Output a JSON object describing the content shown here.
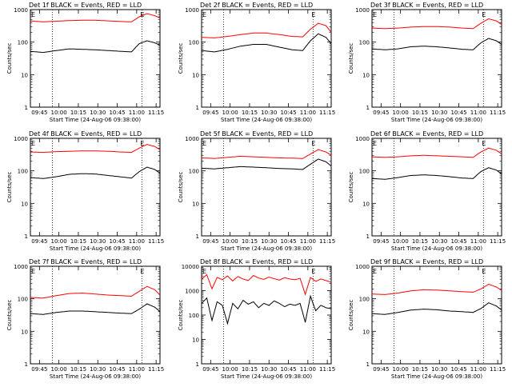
{
  "figure": {
    "background": "#ffffff",
    "event_color": "#000000",
    "lld_color": "#ff0000",
    "x_axis_label": "Start Time (24-Aug-06 09:38:00)",
    "y_axis_label": "Counts/sec",
    "x_tick_labels": [
      "09:45",
      "10:00",
      "10:15",
      "10:30",
      "10:45",
      "11:00",
      "11:15"
    ],
    "y_tick_labels": [
      "1",
      "10",
      "100",
      "1000"
    ],
    "marker_label": "E"
  },
  "chart_data": [
    {
      "type": "line",
      "title": "Det 1f BLACK = Events, RED = LLD",
      "xlabel": "Start Time (24-Aug-06 09:38:00)",
      "ylabel": "Counts/sec",
      "x_ticks": [
        "09:45",
        "10:00",
        "10:15",
        "10:30",
        "10:45",
        "11:00",
        "11:15"
      ],
      "y_scale": "log",
      "ylim": [
        1,
        1000
      ],
      "xlim_minutes": [
        0,
        100
      ],
      "dotted_markers_minutes": [
        17,
        86
      ],
      "series": [
        {
          "name": "LLD",
          "color": "#ff0000",
          "x_minutes": [
            0,
            10,
            20,
            30,
            40,
            50,
            60,
            70,
            78,
            84,
            90,
            96,
            100
          ],
          "values": [
            450,
            420,
            440,
            460,
            470,
            470,
            450,
            430,
            420,
            600,
            750,
            650,
            550
          ]
        },
        {
          "name": "Events",
          "color": "#000000",
          "x_minutes": [
            0,
            10,
            20,
            30,
            40,
            50,
            60,
            70,
            78,
            84,
            90,
            96,
            100
          ],
          "values": [
            52,
            48,
            55,
            62,
            60,
            58,
            55,
            52,
            50,
            90,
            110,
            95,
            80
          ]
        }
      ]
    },
    {
      "type": "line",
      "title": "Det 2f BLACK = Events, RED = LLD",
      "xlabel": "Start Time (24-Aug-06 09:38:00)",
      "ylabel": "Counts/sec",
      "x_ticks": [
        "09:45",
        "10:00",
        "10:15",
        "10:30",
        "10:45",
        "11:00",
        "11:15"
      ],
      "y_scale": "log",
      "ylim": [
        1,
        1000
      ],
      "xlim_minutes": [
        0,
        100
      ],
      "dotted_markers_minutes": [
        17,
        86
      ],
      "series": [
        {
          "name": "LLD",
          "color": "#ff0000",
          "x_minutes": [
            0,
            10,
            20,
            30,
            40,
            50,
            60,
            70,
            78,
            84,
            90,
            96,
            100
          ],
          "values": [
            140,
            135,
            150,
            170,
            190,
            190,
            170,
            150,
            145,
            250,
            380,
            320,
            200
          ]
        },
        {
          "name": "Events",
          "color": "#000000",
          "x_minutes": [
            0,
            10,
            20,
            30,
            40,
            50,
            60,
            70,
            78,
            84,
            90,
            96,
            100
          ],
          "values": [
            55,
            50,
            60,
            75,
            85,
            85,
            70,
            58,
            55,
            110,
            180,
            140,
            90
          ]
        }
      ]
    },
    {
      "type": "line",
      "title": "Det 3f BLACK = Events, RED = LLD",
      "xlabel": "Start Time (24-Aug-06 09:38:00)",
      "ylabel": "Counts/sec",
      "x_ticks": [
        "09:45",
        "10:00",
        "10:15",
        "10:30",
        "10:45",
        "11:00",
        "11:15"
      ],
      "y_scale": "log",
      "ylim": [
        1,
        1000
      ],
      "xlim_minutes": [
        0,
        100
      ],
      "dotted_markers_minutes": [
        17,
        86
      ],
      "series": [
        {
          "name": "LLD",
          "color": "#ff0000",
          "x_minutes": [
            0,
            10,
            20,
            30,
            40,
            50,
            60,
            70,
            78,
            84,
            90,
            96,
            100
          ],
          "values": [
            270,
            260,
            270,
            290,
            300,
            300,
            290,
            270,
            260,
            380,
            520,
            450,
            350
          ]
        },
        {
          "name": "Events",
          "color": "#000000",
          "x_minutes": [
            0,
            10,
            20,
            30,
            40,
            50,
            60,
            70,
            78,
            84,
            90,
            96,
            100
          ],
          "values": [
            62,
            58,
            62,
            72,
            75,
            72,
            66,
            60,
            58,
            95,
            130,
            110,
            85
          ]
        }
      ]
    },
    {
      "type": "line",
      "title": "Det 4f BLACK = Events, RED = LLD",
      "xlabel": "Start Time (24-Aug-06 09:38:00)",
      "ylabel": "Counts/sec",
      "x_ticks": [
        "09:45",
        "10:00",
        "10:15",
        "10:30",
        "10:45",
        "11:00",
        "11:15"
      ],
      "y_scale": "log",
      "ylim": [
        1,
        1000
      ],
      "xlim_minutes": [
        0,
        100
      ],
      "dotted_markers_minutes": [
        17,
        86
      ],
      "series": [
        {
          "name": "LLD",
          "color": "#ff0000",
          "x_minutes": [
            0,
            10,
            20,
            30,
            40,
            50,
            60,
            70,
            78,
            84,
            90,
            96,
            100
          ],
          "values": [
            380,
            370,
            390,
            400,
            410,
            410,
            400,
            380,
            370,
            500,
            650,
            560,
            450
          ]
        },
        {
          "name": "Events",
          "color": "#000000",
          "x_minutes": [
            0,
            10,
            20,
            30,
            40,
            50,
            60,
            70,
            78,
            84,
            90,
            96,
            100
          ],
          "values": [
            62,
            58,
            66,
            78,
            82,
            80,
            72,
            65,
            60,
            95,
            130,
            110,
            85
          ]
        }
      ]
    },
    {
      "type": "line",
      "title": "Det 5f BLACK = Events, RED = LLD",
      "xlabel": "Start Time (24-Aug-06 09:38:00)",
      "ylabel": "Counts/sec",
      "x_ticks": [
        "09:45",
        "10:00",
        "10:15",
        "10:30",
        "10:45",
        "11:00",
        "11:15"
      ],
      "y_scale": "log",
      "ylim": [
        1,
        1000
      ],
      "xlim_minutes": [
        0,
        100
      ],
      "dotted_markers_minutes": [
        17,
        86
      ],
      "series": [
        {
          "name": "LLD",
          "color": "#ff0000",
          "x_minutes": [
            0,
            10,
            20,
            30,
            40,
            50,
            60,
            70,
            78,
            84,
            90,
            96,
            100
          ],
          "values": [
            250,
            240,
            260,
            280,
            270,
            260,
            250,
            245,
            240,
            330,
            450,
            380,
            300
          ]
        },
        {
          "name": "Events",
          "color": "#000000",
          "x_minutes": [
            0,
            10,
            20,
            30,
            40,
            50,
            60,
            70,
            78,
            84,
            90,
            96,
            100
          ],
          "values": [
            120,
            115,
            125,
            135,
            130,
            125,
            118,
            115,
            110,
            160,
            230,
            190,
            140
          ]
        }
      ]
    },
    {
      "type": "line",
      "title": "Det 6f BLACK = Events, RED = LLD",
      "xlabel": "Start Time (24-Aug-06 09:38:00)",
      "ylabel": "Counts/sec",
      "x_ticks": [
        "09:45",
        "10:00",
        "10:15",
        "10:30",
        "10:45",
        "11:00",
        "11:15"
      ],
      "y_scale": "log",
      "ylim": [
        1,
        1000
      ],
      "xlim_minutes": [
        0,
        100
      ],
      "dotted_markers_minutes": [
        17,
        86
      ],
      "series": [
        {
          "name": "LLD",
          "color": "#ff0000",
          "x_minutes": [
            0,
            10,
            20,
            30,
            40,
            50,
            60,
            70,
            78,
            84,
            90,
            96,
            100
          ],
          "values": [
            270,
            260,
            270,
            290,
            300,
            290,
            280,
            270,
            260,
            380,
            500,
            430,
            330
          ]
        },
        {
          "name": "Events",
          "color": "#000000",
          "x_minutes": [
            0,
            10,
            20,
            30,
            40,
            50,
            60,
            70,
            78,
            84,
            90,
            96,
            100
          ],
          "values": [
            58,
            55,
            62,
            72,
            75,
            72,
            66,
            60,
            58,
            95,
            125,
            105,
            80
          ]
        }
      ]
    },
    {
      "type": "line",
      "title": "Det 7f BLACK = Events, RED = LLD",
      "xlabel": "Start Time (24-Aug-06 09:38:00)",
      "ylabel": "Counts/sec",
      "x_ticks": [
        "09:45",
        "10:00",
        "10:15",
        "10:30",
        "10:45",
        "11:00",
        "11:15"
      ],
      "y_scale": "log",
      "ylim": [
        1,
        1000
      ],
      "xlim_minutes": [
        0,
        100
      ],
      "dotted_markers_minutes": [
        17,
        86
      ],
      "series": [
        {
          "name": "LLD",
          "color": "#ff0000",
          "x_minutes": [
            0,
            10,
            20,
            30,
            40,
            50,
            60,
            70,
            78,
            84,
            90,
            96,
            100
          ],
          "values": [
            110,
            105,
            125,
            145,
            150,
            140,
            130,
            125,
            120,
            170,
            240,
            190,
            130
          ]
        },
        {
          "name": "Events",
          "color": "#000000",
          "x_minutes": [
            0,
            10,
            20,
            30,
            40,
            50,
            60,
            70,
            78,
            84,
            90,
            96,
            100
          ],
          "values": [
            35,
            33,
            38,
            42,
            42,
            40,
            38,
            36,
            35,
            48,
            70,
            55,
            40
          ]
        }
      ]
    },
    {
      "type": "line",
      "title": "Det 8f BLACK = Events, RED = LLD",
      "xlabel": "Start Time (24-Aug-06 09:38:00)",
      "ylabel": "Counts/sec",
      "x_ticks": [
        "09:45",
        "10:00",
        "10:15",
        "10:30",
        "10:45",
        "11:00",
        "11:15"
      ],
      "y_scale": "log",
      "ylim": [
        1,
        10000
      ],
      "xlim_minutes": [
        0,
        100
      ],
      "dotted_markers_minutes": [
        17,
        86
      ],
      "series": [
        {
          "name": "LLD",
          "color": "#ff0000",
          "x_minutes": [
            0,
            4,
            8,
            12,
            16,
            20,
            24,
            28,
            32,
            36,
            40,
            44,
            48,
            52,
            56,
            60,
            64,
            68,
            72,
            76,
            80,
            84,
            88,
            92,
            96,
            100
          ],
          "values": [
            3000,
            4500,
            1200,
            3500,
            2800,
            4000,
            2500,
            3800,
            3000,
            2600,
            4200,
            3300,
            2900,
            3600,
            3100,
            2700,
            3400,
            3000,
            2800,
            3200,
            700,
            3500,
            2400,
            3000,
            2600,
            2200
          ]
        },
        {
          "name": "Events",
          "color": "#000000",
          "x_minutes": [
            0,
            4,
            8,
            12,
            16,
            20,
            24,
            28,
            32,
            36,
            40,
            44,
            48,
            52,
            56,
            60,
            64,
            68,
            72,
            76,
            80,
            84,
            88,
            92,
            96,
            100
          ],
          "values": [
            300,
            500,
            60,
            350,
            250,
            45,
            300,
            180,
            400,
            280,
            350,
            200,
            300,
            250,
            380,
            300,
            220,
            280,
            250,
            300,
            50,
            600,
            150,
            250,
            200,
            180
          ]
        }
      ]
    },
    {
      "type": "line",
      "title": "Det 9f BLACK = Events, RED = LLD",
      "xlabel": "Start Time (24-Aug-06 09:38:00)",
      "ylabel": "Counts/sec",
      "x_ticks": [
        "09:45",
        "10:00",
        "10:15",
        "10:30",
        "10:45",
        "11:00",
        "11:15"
      ],
      "y_scale": "log",
      "ylim": [
        1,
        1000
      ],
      "xlim_minutes": [
        0,
        100
      ],
      "dotted_markers_minutes": [
        17,
        86
      ],
      "series": [
        {
          "name": "LLD",
          "color": "#ff0000",
          "x_minutes": [
            0,
            10,
            20,
            30,
            40,
            50,
            60,
            70,
            78,
            84,
            90,
            96,
            100
          ],
          "values": [
            140,
            135,
            150,
            175,
            190,
            185,
            175,
            165,
            160,
            200,
            280,
            230,
            180
          ]
        },
        {
          "name": "Events",
          "color": "#000000",
          "x_minutes": [
            0,
            10,
            20,
            30,
            40,
            50,
            60,
            70,
            78,
            84,
            90,
            96,
            100
          ],
          "values": [
            35,
            33,
            38,
            45,
            48,
            46,
            42,
            40,
            38,
            50,
            75,
            60,
            45
          ]
        }
      ]
    }
  ]
}
